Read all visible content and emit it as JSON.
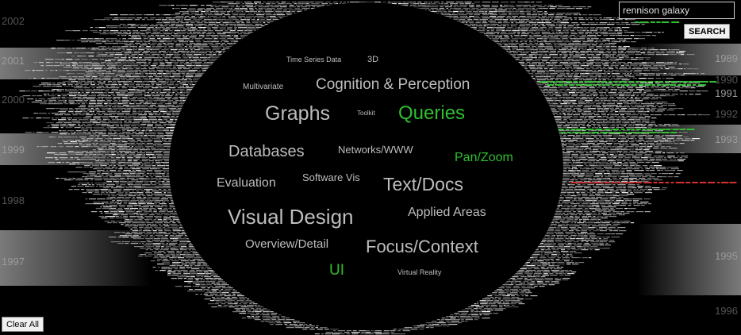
{
  "search": {
    "value": "rennison galaxy",
    "button_label": "SEARCH"
  },
  "clear_label": "Clear All",
  "years_left": [
    "2002",
    "2001",
    "2000",
    "1999",
    "1998",
    "1997"
  ],
  "years_right": [
    "1989",
    "1990",
    "1991",
    "1992",
    "1993",
    "1995",
    "1996"
  ],
  "topics": [
    {
      "label": "Time Series Data",
      "active": false
    },
    {
      "label": "3D",
      "active": false
    },
    {
      "label": "Multivariate",
      "active": false
    },
    {
      "label": "Cognition & Perception",
      "active": false
    },
    {
      "label": "Graphs",
      "active": false
    },
    {
      "label": "Toolkit",
      "active": false
    },
    {
      "label": "Queries",
      "active": true
    },
    {
      "label": "Databases",
      "active": false
    },
    {
      "label": "Networks/WWW",
      "active": false
    },
    {
      "label": "Pan/Zoom",
      "active": true
    },
    {
      "label": "Evaluation",
      "active": false
    },
    {
      "label": "Software Vis",
      "active": false
    },
    {
      "label": "Text/Docs",
      "active": false
    },
    {
      "label": "Visual Design",
      "active": false
    },
    {
      "label": "Applied Areas",
      "active": false
    },
    {
      "label": "Overview/Detail",
      "active": false
    },
    {
      "label": "Focus/Context",
      "active": false
    },
    {
      "label": "UI",
      "active": true
    },
    {
      "label": "Virtual Reality",
      "active": false
    }
  ],
  "colors": {
    "active": "#2fbf2f",
    "inactive": "#bdbdbd",
    "highlight_red": "#d83030"
  }
}
